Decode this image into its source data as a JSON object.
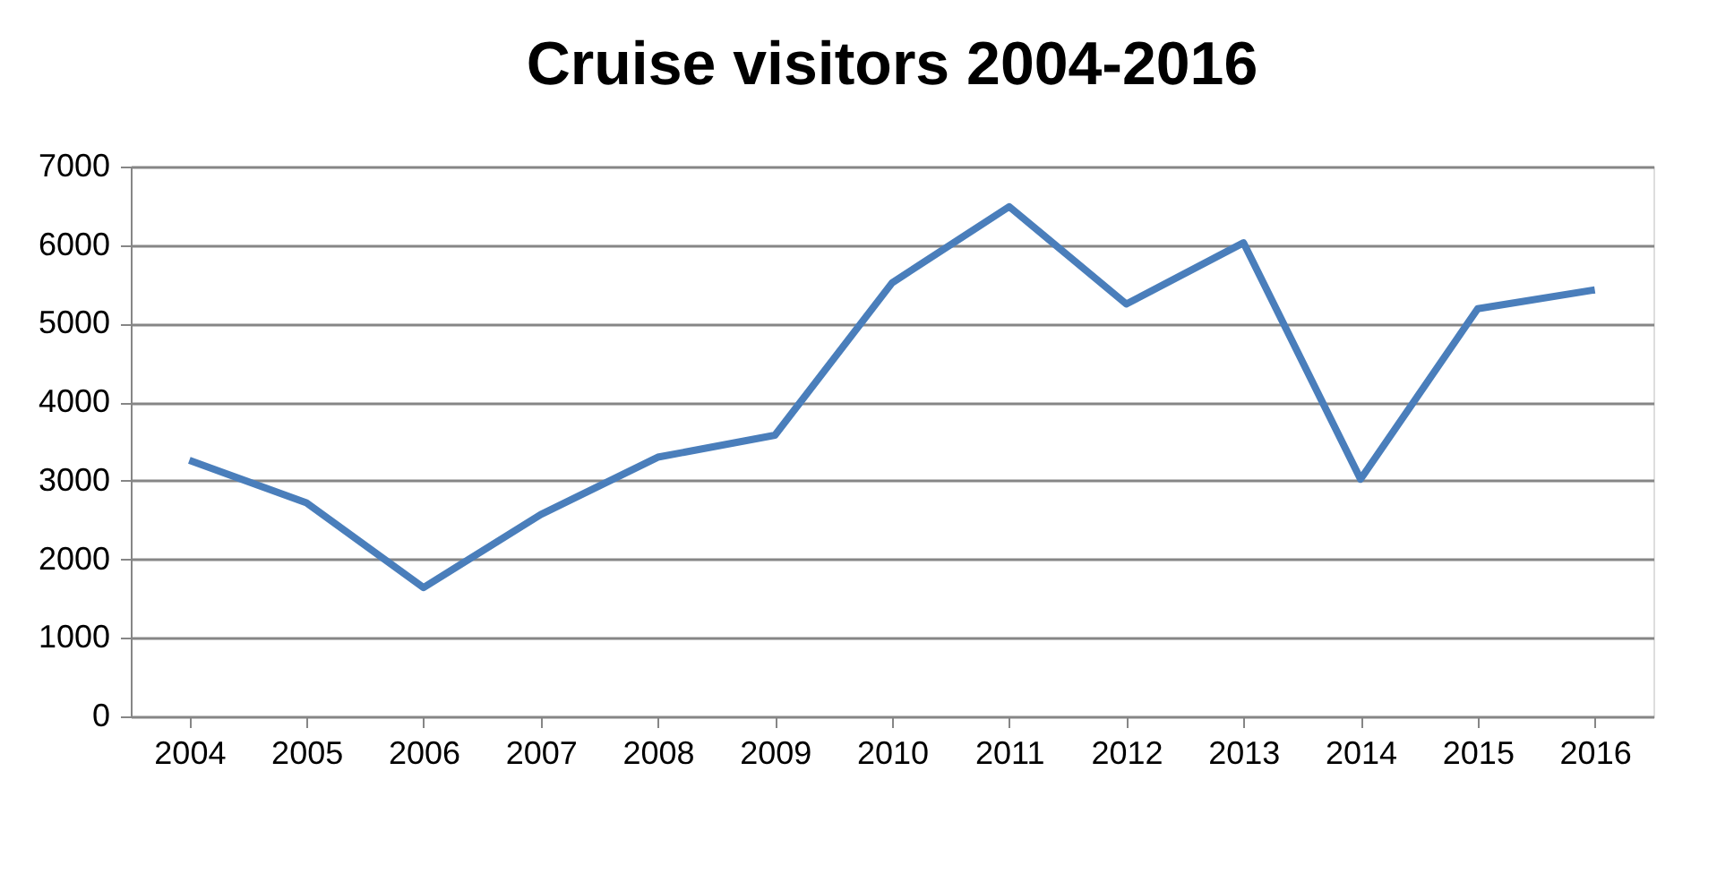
{
  "chart_data": {
    "type": "line",
    "title": "Cruise visitors 2004-2016",
    "categories": [
      "2004",
      "2005",
      "2006",
      "2007",
      "2008",
      "2009",
      "2010",
      "2011",
      "2012",
      "2013",
      "2014",
      "2015",
      "2016"
    ],
    "series": [
      {
        "color": "#4a7ebb",
        "values": [
          3260,
          2720,
          1640,
          2570,
          3300,
          3580,
          5520,
          6490,
          5250,
          6030,
          3020,
          5190,
          5430
        ]
      }
    ],
    "ylim": [
      0,
      7000
    ],
    "yticks": [
      0,
      1000,
      2000,
      3000,
      4000,
      5000,
      6000,
      7000
    ],
    "grid": "y",
    "legend": false,
    "marker": "none",
    "line_style": "solid"
  }
}
